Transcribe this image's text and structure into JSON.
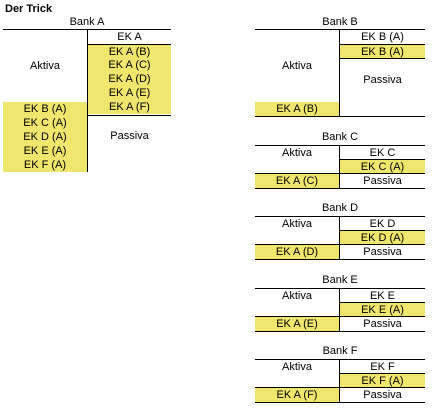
{
  "title": "Der Trick",
  "colors": {
    "highlight": "#efe66e",
    "line": "#000000"
  },
  "bankA": {
    "name": "Bank A",
    "header": "EK A",
    "aktiva": "Aktiva",
    "passiva": "Passiva",
    "right_items": [
      "EK A (B)",
      "EK A (C)",
      "EK A (D)",
      "EK A (E)",
      "EK A (F)"
    ],
    "left_items": [
      "EK B (A)",
      "EK C (A)",
      "EK D (A)",
      "EK E (A)",
      "EK F (A)"
    ]
  },
  "bankB": {
    "name": "Bank B",
    "header": "EK B (A)",
    "right_item": "EK B (A)",
    "aktiva": "Aktiva",
    "passiva": "Passiva",
    "left_item": "EK A (B)"
  },
  "banks": [
    {
      "name": "Bank C",
      "aktiva": "Aktiva",
      "header": "EK C",
      "right_item": "EK C (A)",
      "left_item": "EK A (C)",
      "passiva": "Passiva"
    },
    {
      "name": "Bank D",
      "aktiva": "Aktiva",
      "header": "EK D",
      "right_item": "EK D (A)",
      "left_item": "EK A (D)",
      "passiva": "Passiva"
    },
    {
      "name": "Bank E",
      "aktiva": "Aktiva",
      "header": "EK E",
      "right_item": "EK E (A)",
      "left_item": "EK A (E)",
      "passiva": "Passiva"
    },
    {
      "name": "Bank F",
      "aktiva": "Aktiva",
      "header": "EK F",
      "right_item": "EK F (A)",
      "left_item": "EK A (F)",
      "passiva": "Passiva"
    }
  ]
}
